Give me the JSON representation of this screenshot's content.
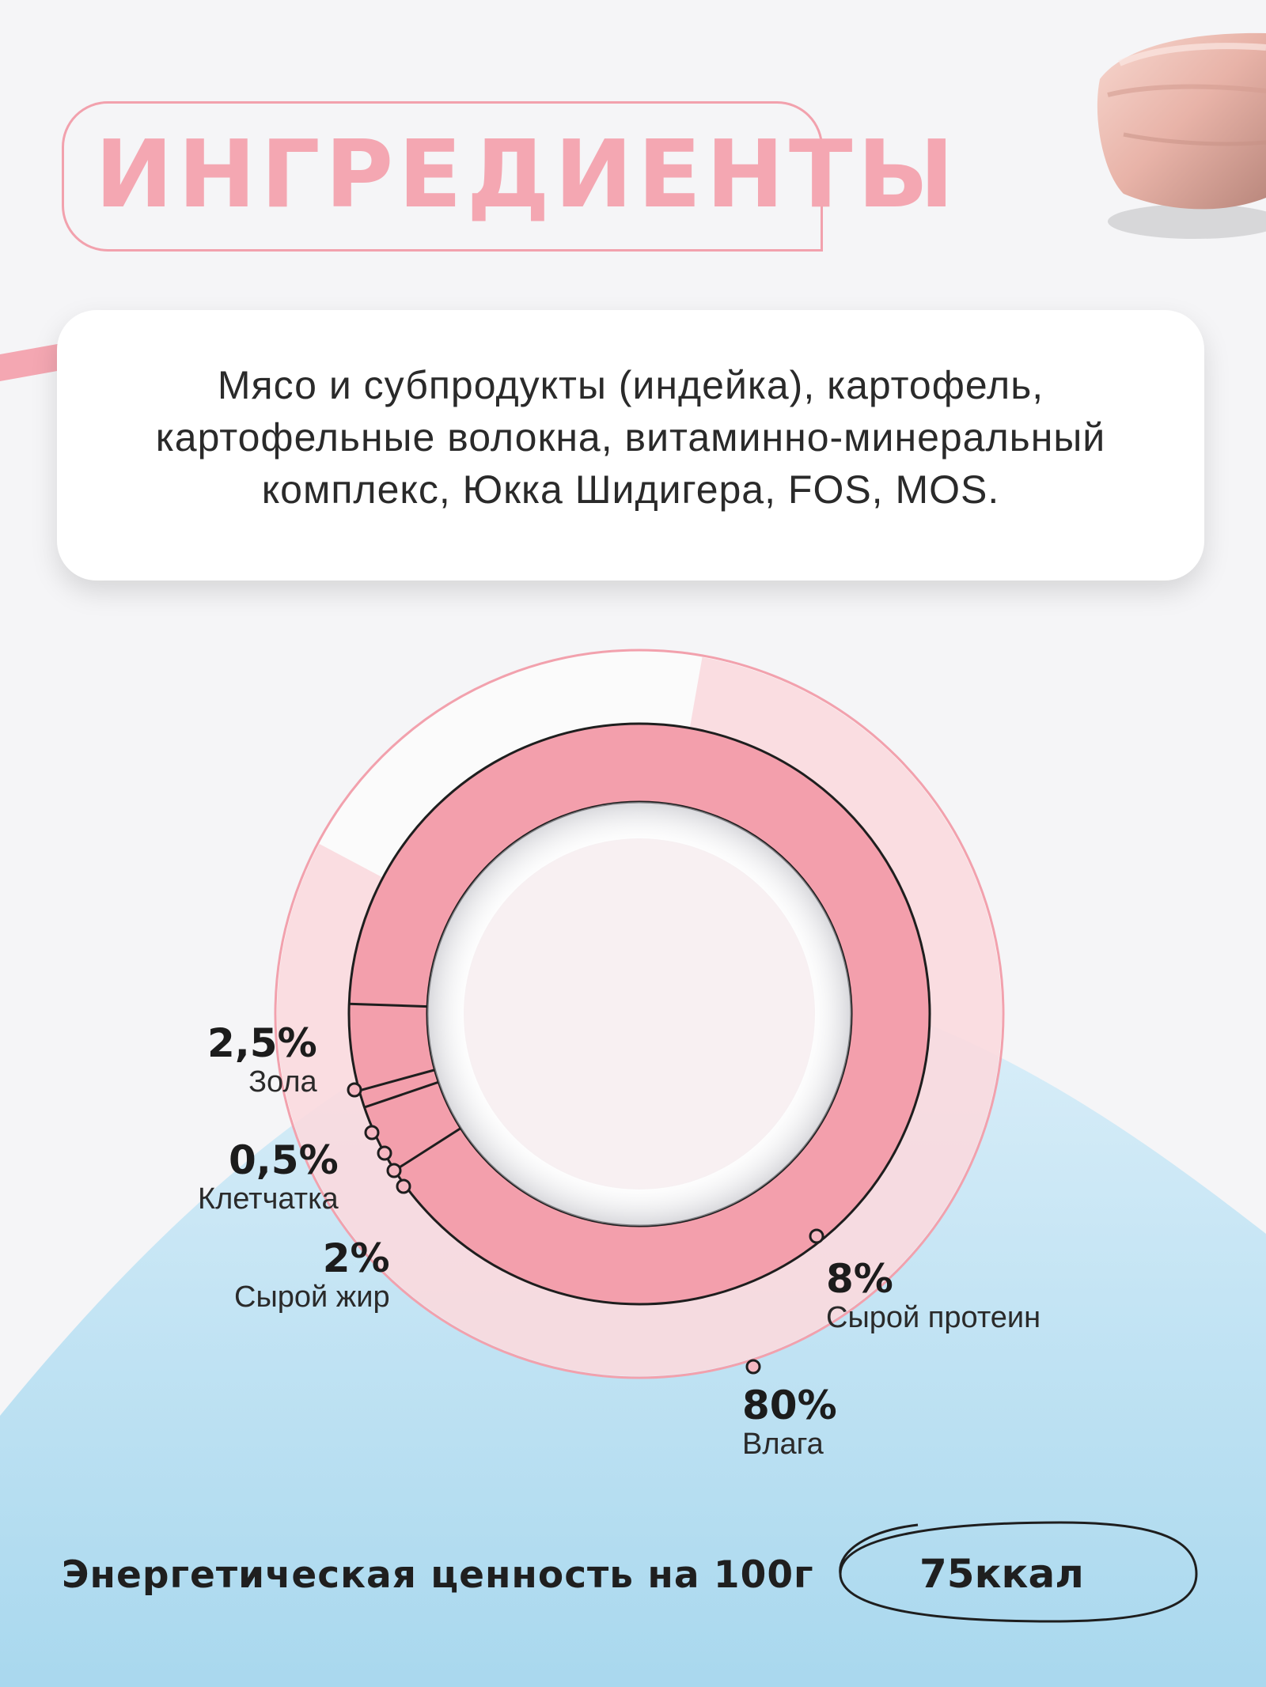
{
  "title": "ИНГРЕДИЕНТЫ",
  "ingredients": {
    "lines": [
      "Мясо и субпродукты (индейка), картофель,",
      "картофельные волокна, витаминно-минеральный",
      "комплекс, Юкка Шидигера, FOS, MOS."
    ]
  },
  "nutrition": {
    "items": [
      {
        "value": "2,5%",
        "name": "Зола",
        "percent": 2.5
      },
      {
        "value": "0,5%",
        "name": "Клетчатка",
        "percent": 0.5
      },
      {
        "value": "2%",
        "name": "Сырой жир",
        "percent": 2
      },
      {
        "value": "8%",
        "name": "Сырой протеин",
        "percent": 8
      },
      {
        "value": "80%",
        "name": "Влага",
        "percent": 80
      }
    ]
  },
  "energy": {
    "label": "Энергетическая ценность на 100г",
    "value": "75ккал"
  },
  "colors": {
    "pink_accent": "#f4a7b2",
    "ring_pink": "#f39fac",
    "light_pink": "#f9d5db",
    "blue": "#a9d8ee"
  }
}
